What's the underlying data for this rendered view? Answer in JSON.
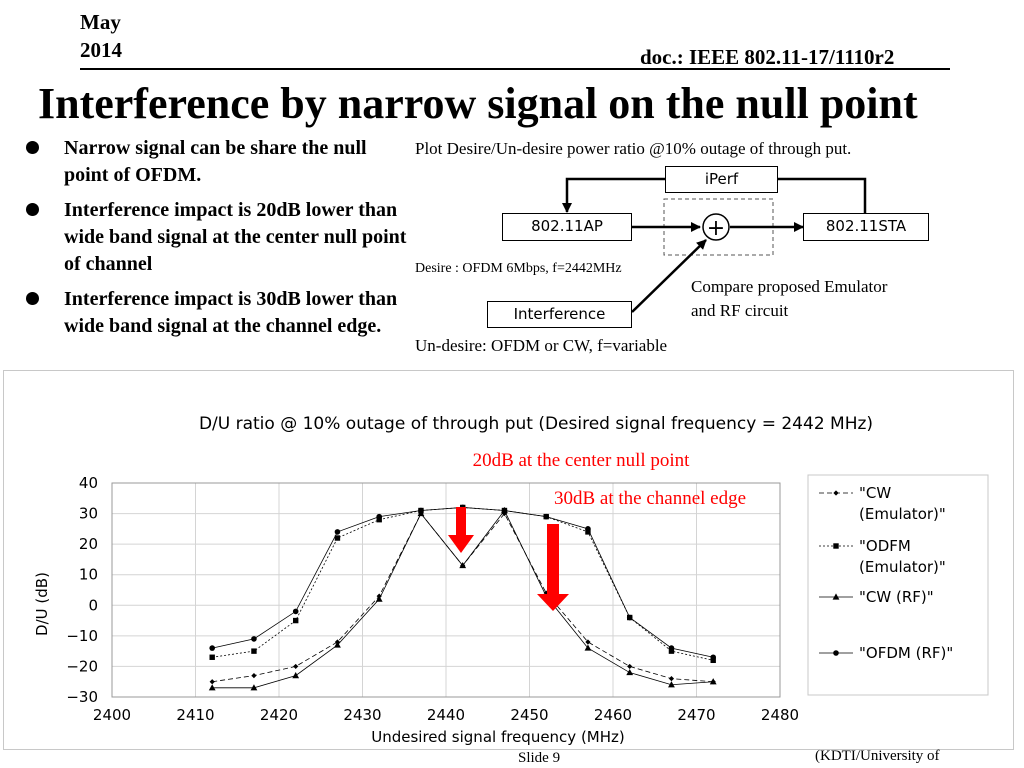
{
  "header": {
    "date_line1": "May",
    "date_line2": "2014",
    "doc": "doc.: IEEE 802.11-17/1110r2"
  },
  "title": "Interference by narrow signal on the null point",
  "bullets": [
    "Narrow signal can be share the null point of OFDM.",
    "Interference impact is 20dB lower than wide band signal at the center null point of channel",
    "Interference impact is 30dB lower than wide band signal at the channel edge."
  ],
  "diagram": {
    "caption": "Plot Desire/Un-desire power ratio @10% outage of through put.",
    "iperf": "iPerf",
    "ap": "802.11AP",
    "sta": "802.11STA",
    "interference": "Interference",
    "desire": "Desire : OFDM 6Mbps, f=2442MHz",
    "undesire": "Un-desire: OFDM or CW,  f=variable",
    "compare_line1": "Compare proposed Emulator",
    "compare_line2": "and RF circuit",
    "combiner_symbol": "+"
  },
  "chart_data": {
    "type": "line",
    "title": "D/U ratio @ 10% outage of through put (Desired signal frequency = 2442 MHz)",
    "xlabel": "Undesired signal frequency (MHz)",
    "ylabel": "D/U (dB)",
    "xlim": [
      2400,
      2480
    ],
    "ylim": [
      -30,
      40
    ],
    "xticks": [
      2400,
      2410,
      2420,
      2430,
      2440,
      2450,
      2460,
      2470,
      2480
    ],
    "yticks": [
      40,
      30,
      20,
      10,
      0,
      -10,
      -20,
      -30
    ],
    "ytick_labels": [
      "40",
      "30",
      "20",
      "10",
      "0",
      "−10",
      "−20",
      "−30"
    ],
    "grid": true,
    "legend_position": "right",
    "series": [
      {
        "name": "\"CW (Emulator)\"",
        "legend_lines": [
          "\"CW",
          "(Emulator)\""
        ],
        "marker": "diamond",
        "dash": "5,3",
        "x": [
          2412,
          2417,
          2422,
          2427,
          2432,
          2437,
          2442,
          2447,
          2452,
          2457,
          2462,
          2467,
          2472
        ],
        "y": [
          -25,
          -23,
          -20,
          -12,
          3,
          30,
          13,
          30,
          4,
          -12,
          -20,
          -24,
          -25
        ]
      },
      {
        "name": "\"ODFM (Emulator)\"",
        "legend_lines": [
          "\"ODFM",
          "(Emulator)\""
        ],
        "marker": "square",
        "dash": "2,2",
        "x": [
          2412,
          2417,
          2422,
          2427,
          2432,
          2437,
          2442,
          2447,
          2452,
          2457,
          2462,
          2467,
          2472
        ],
        "y": [
          -17,
          -15,
          -5,
          22,
          28,
          31,
          32,
          31,
          29,
          24,
          -4,
          -15,
          -18
        ]
      },
      {
        "name": "\"CW (RF)\"",
        "legend_lines": [
          "\"CW (RF)\""
        ],
        "marker": "triangle",
        "dash": "",
        "x": [
          2412,
          2417,
          2422,
          2427,
          2432,
          2437,
          2442,
          2447,
          2452,
          2457,
          2462,
          2467,
          2472
        ],
        "y": [
          -27,
          -27,
          -23,
          -13,
          2,
          30,
          13,
          31,
          3,
          -14,
          -22,
          -26,
          -25
        ]
      },
      {
        "name": "\"OFDM (RF)\"",
        "legend_lines": [
          "\"OFDM (RF)\""
        ],
        "marker": "circle",
        "dash": "",
        "x": [
          2412,
          2417,
          2422,
          2427,
          2432,
          2437,
          2442,
          2447,
          2452,
          2457,
          2462,
          2467,
          2472
        ],
        "y": [
          -14,
          -11,
          -2,
          24,
          29,
          31,
          32,
          31,
          29,
          25,
          -4,
          -14,
          -17
        ]
      }
    ],
    "annotations": [
      {
        "text": "20dB at the center null point",
        "color": "#ff0000"
      },
      {
        "text": "30dB at the channel edge",
        "color": "#ff0000"
      }
    ],
    "arrow_color": "#ff0000"
  },
  "footer": {
    "slide": "Slide 9",
    "affiliation": "(KDTI/University of"
  }
}
